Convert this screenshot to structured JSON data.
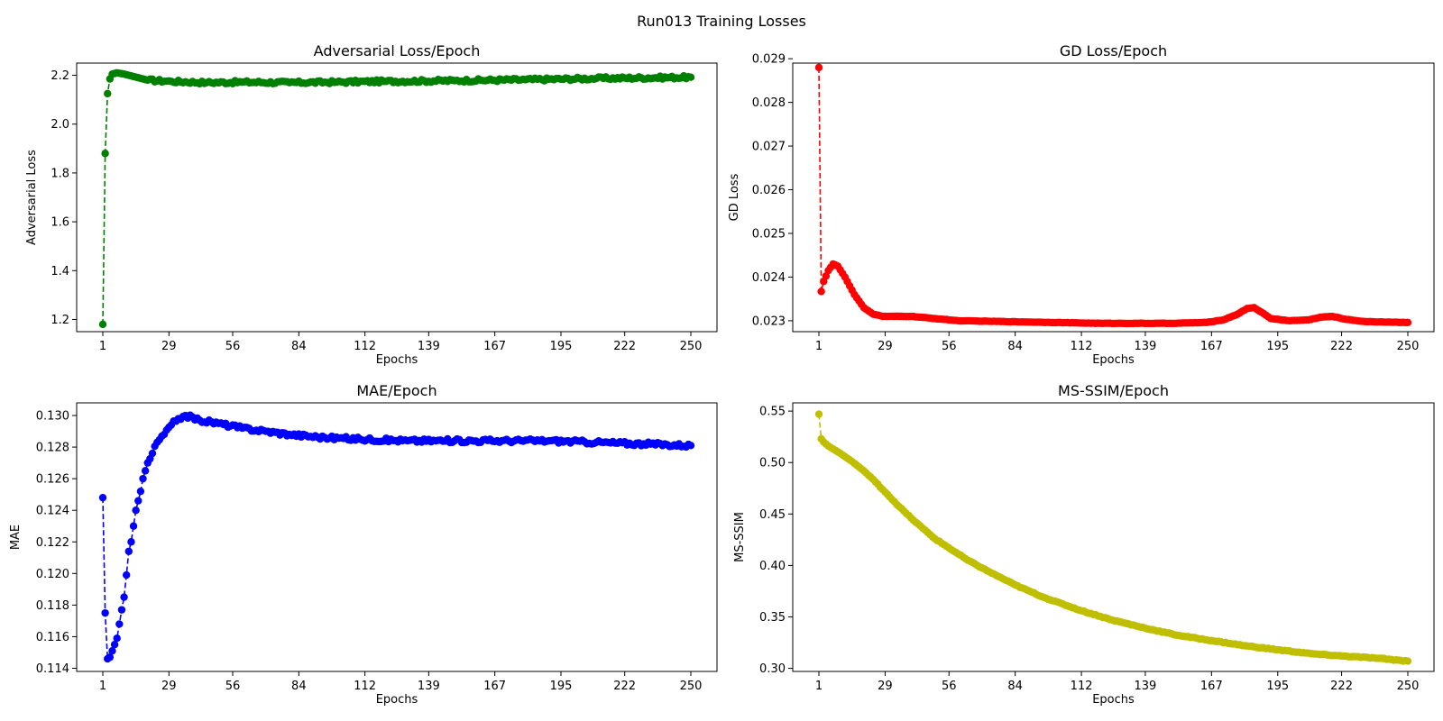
{
  "figure": {
    "suptitle": "Run013 Training Losses"
  },
  "chart_data": [
    {
      "id": "adv",
      "type": "line",
      "title": "Adversarial Loss/Epoch",
      "xlabel": "Epochs",
      "ylabel": "Adversarial Loss",
      "color": "#008000",
      "line_style": "dashed",
      "marker": "circle",
      "grid": false,
      "xlim": [
        1,
        250
      ],
      "ylim": [
        1.15,
        2.25
      ],
      "xticks": [
        1,
        29,
        56,
        84,
        112,
        139,
        167,
        195,
        222,
        250
      ],
      "yticks": [
        1.2,
        1.4,
        1.6,
        1.8,
        2.0,
        2.2
      ],
      "ytick_labels": [
        "1.2",
        "1.4",
        "1.6",
        "1.8",
        "2.0",
        "2.2"
      ],
      "series": [
        {
          "keypoints": [
            [
              1,
              1.18
            ],
            [
              2,
              1.88
            ],
            [
              3,
              2.125
            ],
            [
              4,
              2.185
            ],
            [
              5,
              2.205
            ],
            [
              7,
              2.21
            ],
            [
              10,
              2.205
            ],
            [
              14,
              2.195
            ],
            [
              20,
              2.18
            ],
            [
              30,
              2.175
            ],
            [
              45,
              2.17
            ],
            [
              60,
              2.172
            ],
            [
              80,
              2.17
            ],
            [
              100,
              2.172
            ],
            [
              120,
              2.175
            ],
            [
              150,
              2.178
            ],
            [
              180,
              2.182
            ],
            [
              210,
              2.187
            ],
            [
              250,
              2.192
            ]
          ],
          "noise": 0.006
        }
      ]
    },
    {
      "id": "gd",
      "type": "line",
      "title": "GD Loss/Epoch",
      "xlabel": "Epochs",
      "ylabel": "GD Loss",
      "color": "#ff0000",
      "line_style": "dashed",
      "marker": "circle",
      "grid": false,
      "xlim": [
        1,
        250
      ],
      "ylim": [
        0.02275,
        0.0289
      ],
      "xticks": [
        1,
        29,
        56,
        84,
        112,
        139,
        167,
        195,
        222,
        250
      ],
      "yticks": [
        0.023,
        0.024,
        0.025,
        0.026,
        0.027,
        0.028,
        0.029
      ],
      "ytick_labels": [
        "0.023",
        "0.024",
        "0.025",
        "0.026",
        "0.027",
        "0.028",
        "0.029"
      ],
      "series": [
        {
          "keypoints": [
            [
              1,
              0.0288
            ],
            [
              2,
              0.02367
            ],
            [
              3,
              0.0239
            ],
            [
              5,
              0.02415
            ],
            [
              7,
              0.0243
            ],
            [
              9,
              0.02425
            ],
            [
              12,
              0.024
            ],
            [
              16,
              0.0236
            ],
            [
              20,
              0.0233
            ],
            [
              24,
              0.02315
            ],
            [
              28,
              0.0231
            ],
            [
              40,
              0.0231
            ],
            [
              60,
              0.023
            ],
            [
              90,
              0.02297
            ],
            [
              120,
              0.02294
            ],
            [
              150,
              0.02294
            ],
            [
              165,
              0.02296
            ],
            [
              172,
              0.02302
            ],
            [
              178,
              0.02315
            ],
            [
              182,
              0.02328
            ],
            [
              185,
              0.0233
            ],
            [
              188,
              0.0232
            ],
            [
              192,
              0.02305
            ],
            [
              200,
              0.023
            ],
            [
              208,
              0.02302
            ],
            [
              213,
              0.02308
            ],
            [
              218,
              0.0231
            ],
            [
              224,
              0.02303
            ],
            [
              232,
              0.02298
            ],
            [
              250,
              0.02296
            ]
          ],
          "noise": 4e-06
        }
      ]
    },
    {
      "id": "mae",
      "type": "line",
      "title": "MAE/Epoch",
      "xlabel": "Epochs",
      "ylabel": "MAE",
      "color": "#0000ff",
      "line_style": "dashed",
      "marker": "circle",
      "grid": false,
      "xlim": [
        1,
        250
      ],
      "ylim": [
        0.1138,
        0.1308
      ],
      "xticks": [
        1,
        29,
        56,
        84,
        112,
        139,
        167,
        195,
        222,
        250
      ],
      "yticks": [
        0.114,
        0.116,
        0.118,
        0.12,
        0.122,
        0.124,
        0.126,
        0.128,
        0.13
      ],
      "ytick_labels": [
        "0.114",
        "0.116",
        "0.118",
        "0.120",
        "0.122",
        "0.124",
        "0.126",
        "0.128",
        "0.130"
      ],
      "series": [
        {
          "keypoints": [
            [
              1,
              0.1248
            ],
            [
              2,
              0.1175
            ],
            [
              3,
              0.1146
            ],
            [
              4,
              0.1147
            ],
            [
              5,
              0.1151
            ],
            [
              6,
              0.1155
            ],
            [
              7,
              0.1159
            ],
            [
              8,
              0.1168
            ],
            [
              9,
              0.1177
            ],
            [
              10,
              0.1185
            ],
            [
              11,
              0.1199
            ],
            [
              12,
              0.1214
            ],
            [
              13,
              0.122
            ],
            [
              14,
              0.123
            ],
            [
              15,
              0.124
            ],
            [
              16,
              0.1246
            ],
            [
              17,
              0.1252
            ],
            [
              18,
              0.126
            ],
            [
              19,
              0.1265
            ],
            [
              20,
              0.127
            ],
            [
              22,
              0.1276
            ],
            [
              24,
              0.1283
            ],
            [
              27,
              0.1288
            ],
            [
              30,
              0.1294
            ],
            [
              33,
              0.1298
            ],
            [
              36,
              0.13
            ],
            [
              42,
              0.1297
            ],
            [
              50,
              0.1295
            ],
            [
              60,
              0.1292
            ],
            [
              70,
              0.129
            ],
            [
              80,
              0.1288
            ],
            [
              95,
              0.1286
            ],
            [
              110,
              0.1285
            ],
            [
              130,
              0.1284
            ],
            [
              150,
              0.1284
            ],
            [
              170,
              0.1284
            ],
            [
              190,
              0.1284
            ],
            [
              210,
              0.1283
            ],
            [
              230,
              0.1282
            ],
            [
              250,
              0.1281
            ]
          ],
          "noise": 0.00012
        }
      ]
    },
    {
      "id": "msssim",
      "type": "line",
      "title": "MS-SSIM/Epoch",
      "xlabel": "Epochs",
      "ylabel": "MS-SSIM",
      "color": "#bfbf00",
      "line_style": "dashed",
      "marker": "circle",
      "grid": false,
      "xlim": [
        1,
        250
      ],
      "ylim": [
        0.297,
        0.558
      ],
      "xticks": [
        1,
        29,
        56,
        84,
        112,
        139,
        167,
        195,
        222,
        250
      ],
      "yticks": [
        0.3,
        0.35,
        0.4,
        0.45,
        0.5,
        0.55
      ],
      "ytick_labels": [
        "0.30",
        "0.35",
        "0.40",
        "0.45",
        "0.50",
        "0.55"
      ],
      "series": [
        {
          "keypoints": [
            [
              1,
              0.547
            ],
            [
              2,
              0.523
            ],
            [
              3,
              0.52
            ],
            [
              5,
              0.516
            ],
            [
              10,
              0.509
            ],
            [
              15,
              0.501
            ],
            [
              20,
              0.492
            ],
            [
              25,
              0.481
            ],
            [
              30,
              0.469
            ],
            [
              35,
              0.457
            ],
            [
              40,
              0.446
            ],
            [
              45,
              0.436
            ],
            [
              50,
              0.426
            ],
            [
              56,
              0.417
            ],
            [
              64,
              0.405
            ],
            [
              72,
              0.395
            ],
            [
              84,
              0.381
            ],
            [
              96,
              0.369
            ],
            [
              112,
              0.356
            ],
            [
              125,
              0.347
            ],
            [
              139,
              0.339
            ],
            [
              153,
              0.332
            ],
            [
              167,
              0.327
            ],
            [
              181,
              0.322
            ],
            [
              195,
              0.318
            ],
            [
              210,
              0.314
            ],
            [
              222,
              0.312
            ],
            [
              236,
              0.31
            ],
            [
              250,
              0.307
            ]
          ],
          "noise": 0.0004
        }
      ]
    }
  ]
}
